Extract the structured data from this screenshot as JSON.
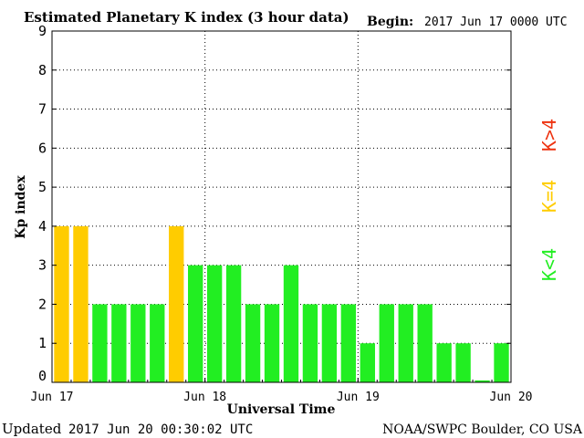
{
  "header": {
    "title": "Estimated Planetary K index (3 hour data)",
    "begin_label": "Begin:",
    "begin_value": "2017 Jun 17 0000 UTC"
  },
  "footer": {
    "updated_label": "Updated",
    "updated_value": "2017 Jun 20 00:30:02 UTC",
    "credit": "NOAA/SWPC Boulder, CO USA"
  },
  "legend": {
    "low": {
      "text": "K<4",
      "color": "#22ee22"
    },
    "mid": {
      "text": "K=4",
      "color": "#ffcc00"
    },
    "high": {
      "text": "K>4",
      "color": "#ee3311"
    }
  },
  "chart_data": {
    "type": "bar",
    "title": "Estimated Planetary K index (3 hour data)",
    "xlabel": "Universal Time",
    "ylabel": "Kp index",
    "ylim": [
      0,
      9
    ],
    "yticks": [
      0,
      1,
      2,
      3,
      4,
      5,
      6,
      7,
      8,
      9
    ],
    "xticks": [
      "Jun 17",
      "Jun 18",
      "Jun 19",
      "Jun 20"
    ],
    "grid": true,
    "bin_hours": 3,
    "values": [
      4,
      4,
      2,
      2,
      2,
      2,
      4,
      3,
      3,
      3,
      2,
      2,
      3,
      2,
      2,
      2,
      1,
      2,
      2,
      2,
      1,
      1,
      0.05,
      1
    ]
  }
}
